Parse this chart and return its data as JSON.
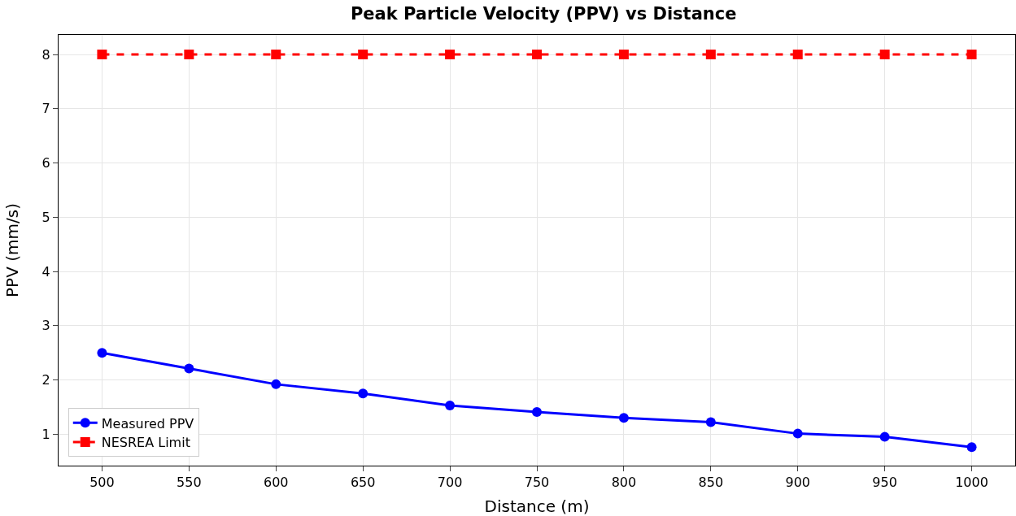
{
  "chart_data": {
    "type": "line",
    "title": "Peak Particle Velocity (PPV) vs Distance",
    "xlabel": "Distance (m)",
    "ylabel": "PPV (mm/s)",
    "x": [
      500,
      550,
      600,
      650,
      700,
      750,
      800,
      850,
      900,
      950,
      1000
    ],
    "series": [
      {
        "name": "Measured PPV",
        "color": "#0000ff",
        "values": [
          2.5,
          2.21,
          1.92,
          1.75,
          1.53,
          1.41,
          1.3,
          1.22,
          1.01,
          0.95,
          0.76
        ],
        "marker": "circle",
        "line_style": "solid"
      },
      {
        "name": "NESREA Limit",
        "color": "#ff0000",
        "values": [
          8,
          8,
          8,
          8,
          8,
          8,
          8,
          8,
          8,
          8,
          8
        ],
        "marker": "square",
        "line_style": "dashed"
      }
    ],
    "xlim": [
      475,
      1025
    ],
    "xticks": [
      500,
      550,
      600,
      650,
      700,
      750,
      800,
      850,
      900,
      950,
      1000
    ],
    "ylim": [
      0.42,
      8.36
    ],
    "yticks": [
      1,
      2,
      3,
      4,
      5,
      6,
      7,
      8
    ],
    "grid": true,
    "legend": "bottom left"
  }
}
